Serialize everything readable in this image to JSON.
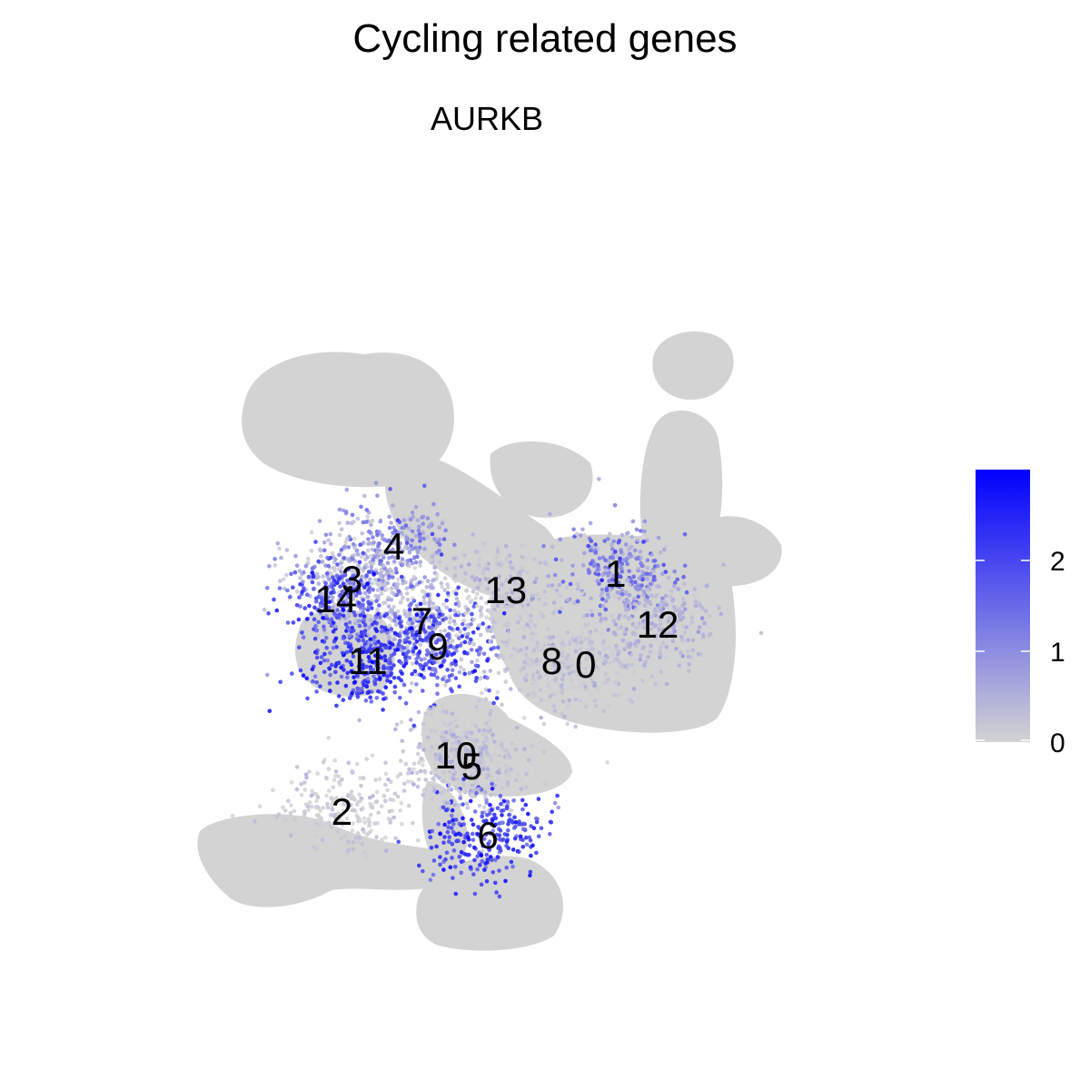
{
  "title": "Cycling related genes",
  "chart_data": {
    "type": "scatter",
    "title": "AURKB",
    "xlabel": "",
    "ylabel": "",
    "grid": false,
    "axes_visible": false,
    "color_scale": {
      "low_color": "#d3d3d3",
      "high_color": "#0000ff",
      "min": 0,
      "max": 3,
      "ticks": [
        "0",
        "1",
        "2"
      ],
      "tick_values": [
        0,
        1,
        2
      ],
      "legend_position": "right"
    },
    "clusters": [
      {
        "label": "0",
        "x": 8.4,
        "y": 2.4,
        "expression": 0.05
      },
      {
        "label": "1",
        "x": 9.9,
        "y": 7.4,
        "expression": 1.1
      },
      {
        "label": "2",
        "x": -3.8,
        "y": -5.7,
        "expression": 0.05
      },
      {
        "label": "3",
        "x": -3.3,
        "y": 7.1,
        "expression": 0.3
      },
      {
        "label": "4",
        "x": -1.2,
        "y": 8.9,
        "expression": 0.9
      },
      {
        "label": "5",
        "x": 2.7,
        "y": -3.2,
        "expression": 0.1
      },
      {
        "label": "6",
        "x": 3.5,
        "y": -7.0,
        "expression": 2.2
      },
      {
        "label": "7",
        "x": 0.2,
        "y": 4.8,
        "expression": 0.3
      },
      {
        "label": "8",
        "x": 6.7,
        "y": 2.6,
        "expression": 0.15
      },
      {
        "label": "9",
        "x": 1.0,
        "y": 3.4,
        "expression": 2.0
      },
      {
        "label": "10",
        "x": 1.9,
        "y": -2.6,
        "expression": 0.2
      },
      {
        "label": "11",
        "x": -2.5,
        "y": 2.6,
        "expression": 2.3
      },
      {
        "label": "12",
        "x": 12.0,
        "y": 4.6,
        "expression": 0.4
      },
      {
        "label": "13",
        "x": 4.4,
        "y": 6.5,
        "expression": 0.2
      },
      {
        "label": "14",
        "x": -4.1,
        "y": 6.0,
        "expression": 1.8
      }
    ]
  }
}
